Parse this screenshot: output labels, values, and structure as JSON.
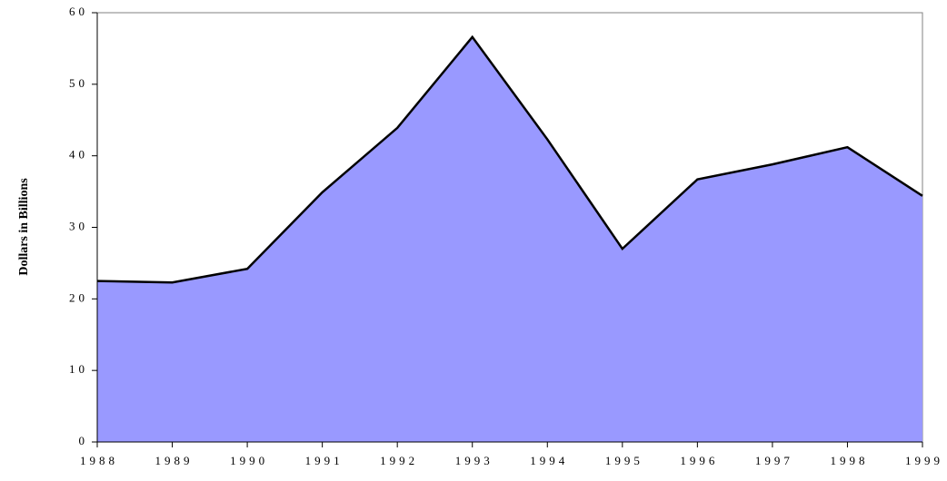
{
  "chart_data": {
    "type": "area",
    "y_label": "Dollars in Billions",
    "categories": [
      "1988",
      "1989",
      "1990",
      "1991",
      "1992",
      "1993",
      "1994",
      "1995",
      "1996",
      "1997",
      "1998",
      "1999"
    ],
    "values": [
      22.5,
      22.3,
      24.2,
      34.9,
      43.9,
      56.6,
      42.3,
      27.0,
      36.7,
      38.8,
      41.2,
      34.4
    ],
    "color": "#9999ff",
    "ylim": [
      0,
      60
    ],
    "yticks": [
      0,
      10,
      20,
      30,
      40,
      50,
      60
    ]
  }
}
